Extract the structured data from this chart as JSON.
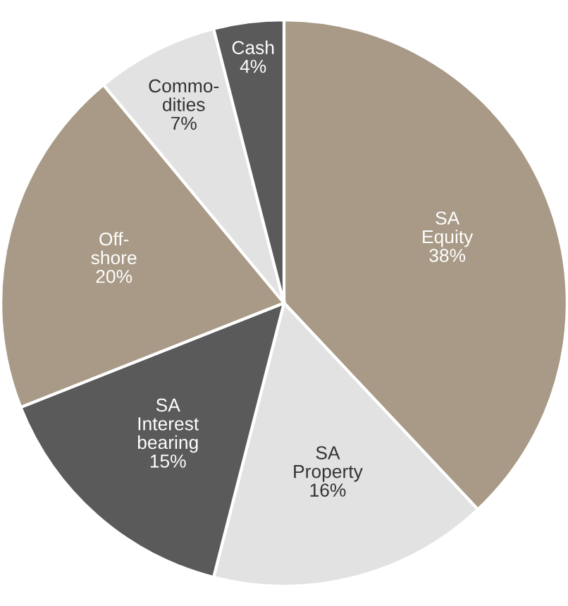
{
  "chart_data": {
    "type": "pie",
    "categories": [
      "SA\nEquity",
      "SA\nProperty",
      "SA\nInterest\nbearing",
      "Off-\nshore",
      "Commo-\ndities",
      "Cash"
    ],
    "values": [
      38,
      16,
      15,
      20,
      7,
      4
    ],
    "value_labels": [
      "38%",
      "16%",
      "15%",
      "20%",
      "7%",
      "4%"
    ],
    "colors": [
      "#a89a86",
      "#e2e2e2",
      "#5a5a5a",
      "#a89a86",
      "#e2e2e2",
      "#5a5a5a"
    ]
  }
}
